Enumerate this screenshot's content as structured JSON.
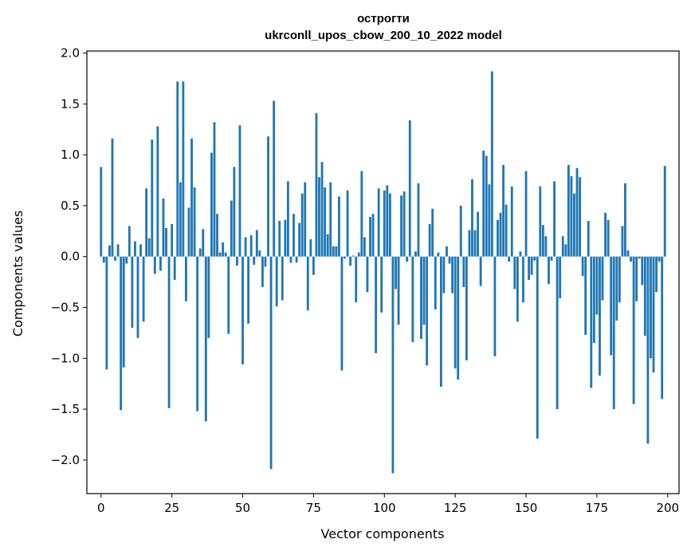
{
  "chart_data": {
    "type": "bar",
    "title": "острогти",
    "subtitle": "ukrconll_upos_cbow_200_10_2022 model",
    "xlabel": "Vector components",
    "ylabel": "Components values",
    "xlim": [
      -5,
      204
    ],
    "ylim": [
      -2.33,
      2.02
    ],
    "xticks": [
      0,
      25,
      50,
      75,
      100,
      125,
      150,
      175,
      200
    ],
    "yticks": [
      -2.0,
      -1.5,
      -1.0,
      -0.5,
      0.0,
      0.5,
      1.0,
      1.5,
      2.0
    ],
    "ytick_labels": [
      "−2.0",
      "−1.5",
      "−1.0",
      "−0.5",
      "0.0",
      "0.5",
      "1.0",
      "1.5",
      "2.0"
    ],
    "grid": false,
    "bar_color": "#1f77b4",
    "values": [
      0.88,
      -0.06,
      -1.11,
      0.11,
      1.16,
      -0.04,
      0.12,
      -1.51,
      -1.09,
      -0.07,
      0.3,
      -0.7,
      0.15,
      -0.8,
      0.12,
      -0.64,
      0.67,
      0.18,
      1.15,
      -0.17,
      1.28,
      -0.14,
      0.57,
      0.28,
      -1.49,
      0.32,
      -0.23,
      1.72,
      0.73,
      1.72,
      -0.44,
      0.48,
      1.16,
      0.68,
      -1.52,
      0.08,
      0.27,
      -1.62,
      -0.8,
      1.02,
      1.32,
      0.42,
      0.04,
      0.14,
      0.04,
      -0.76,
      0.55,
      0.88,
      -0.09,
      1.29,
      -1.06,
      0.19,
      -0.66,
      0.21,
      -0.08,
      0.26,
      0.06,
      -0.3,
      -0.1,
      1.18,
      -2.09,
      1.53,
      -0.49,
      0.35,
      -0.43,
      0.36,
      0.74,
      -0.06,
      0.42,
      -0.06,
      0.33,
      0.62,
      0.73,
      -0.53,
      0.17,
      -0.18,
      1.41,
      0.78,
      0.93,
      0.68,
      0.22,
      0.73,
      0.1,
      0.1,
      0.59,
      -1.12,
      -0.02,
      0.65,
      -0.09,
      0.01,
      -0.45,
      0.04,
      0.84,
      0.19,
      -0.35,
      0.39,
      0.42,
      -0.95,
      0.67,
      -0.55,
      0.65,
      0.7,
      0.62,
      -2.13,
      -0.32,
      -0.67,
      0.6,
      0.64,
      -0.05,
      1.34,
      -0.84,
      0.05,
      0.72,
      -0.81,
      -0.67,
      -1.07,
      0.32,
      0.47,
      -0.52,
      0.04,
      -1.28,
      -0.36,
      0.1,
      -0.07,
      -0.36,
      -1.1,
      -1.21,
      0.5,
      -0.3,
      -1.02,
      0.26,
      0.76,
      0.26,
      0.44,
      -0.29,
      1.04,
      0.99,
      0.71,
      1.82,
      -0.98,
      0.36,
      0.43,
      0.9,
      0.51,
      -0.05,
      0.69,
      -0.32,
      -0.64,
      0.05,
      -0.45,
      0.84,
      -0.23,
      -0.18,
      -0.04,
      -1.79,
      0.69,
      0.31,
      0.2,
      -0.27,
      -0.04,
      0.74,
      -1.5,
      -0.41,
      0.2,
      0.12,
      0.9,
      0.79,
      0.62,
      0.87,
      0.78,
      -0.19,
      -0.77,
      0.35,
      -1.29,
      -0.85,
      -0.57,
      -1.17,
      -0.43,
      0.43,
      0.36,
      -0.97,
      -1.5,
      -0.63,
      -0.45,
      0.3,
      0.72,
      0.06,
      -0.05,
      -1.45,
      -0.44,
      -0.02,
      -0.28,
      -0.78,
      -1.84,
      -1.0,
      -1.14,
      -0.35,
      -0.05,
      -1.4,
      0.89
    ]
  }
}
